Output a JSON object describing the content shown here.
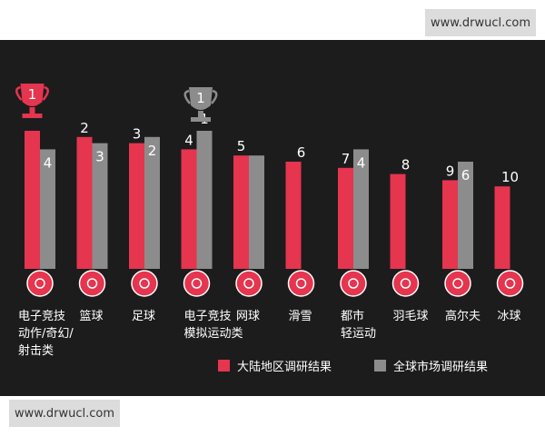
{
  "watermark": {
    "top": "www.drwucl.com",
    "bottom": "www.drwucl.com"
  },
  "chart_data": {
    "type": "bar",
    "categories": [
      [
        "电子竞技",
        "动作/奇幻/",
        "射击类"
      ],
      [
        "篮球"
      ],
      [
        "足球"
      ],
      [
        "电子竞技",
        "模拟运动类"
      ],
      [
        "网球"
      ],
      [
        "滑雪"
      ],
      [
        "都市",
        "轻运动"
      ],
      [
        "羽毛球"
      ],
      [
        "高尔夫"
      ],
      [
        "冰球"
      ]
    ],
    "icons": [
      "eye-icon",
      "basketball-icon",
      "soccer-ball-icon",
      "gamepad-icon",
      "tennis-racket-icon",
      "skier-icon",
      "skateboard-icon",
      "badminton-player-icon",
      "golf-bag-icon",
      "hockey-player-icon"
    ],
    "series": [
      {
        "name": "大陆地区调研结果",
        "color": "#e5354f",
        "ranks": [
          1,
          2,
          3,
          4,
          5,
          6,
          7,
          8,
          9,
          10
        ]
      },
      {
        "name": "全球市场调研结果",
        "color": "#8c8c8c",
        "ranks": [
          4,
          3,
          2,
          1,
          5,
          null,
          4,
          null,
          6,
          null
        ]
      }
    ],
    "rank_labels": {
      "primary": [
        "1",
        "2",
        "3",
        "4",
        "5",
        "6",
        "7",
        "8",
        "9",
        "10"
      ],
      "secondary": [
        "4",
        "3",
        "2",
        "1",
        "",
        null,
        "4",
        null,
        "6",
        null
      ]
    },
    "trophies": [
      {
        "category_index": 0,
        "series": "大陆地区调研结果",
        "color": "#e5354f",
        "label": "1"
      },
      {
        "category_index": 3,
        "series": "全球市场调研结果",
        "color": "#8c8c8c",
        "label": "1"
      }
    ],
    "legend": {
      "placement": "bottom-right"
    }
  }
}
